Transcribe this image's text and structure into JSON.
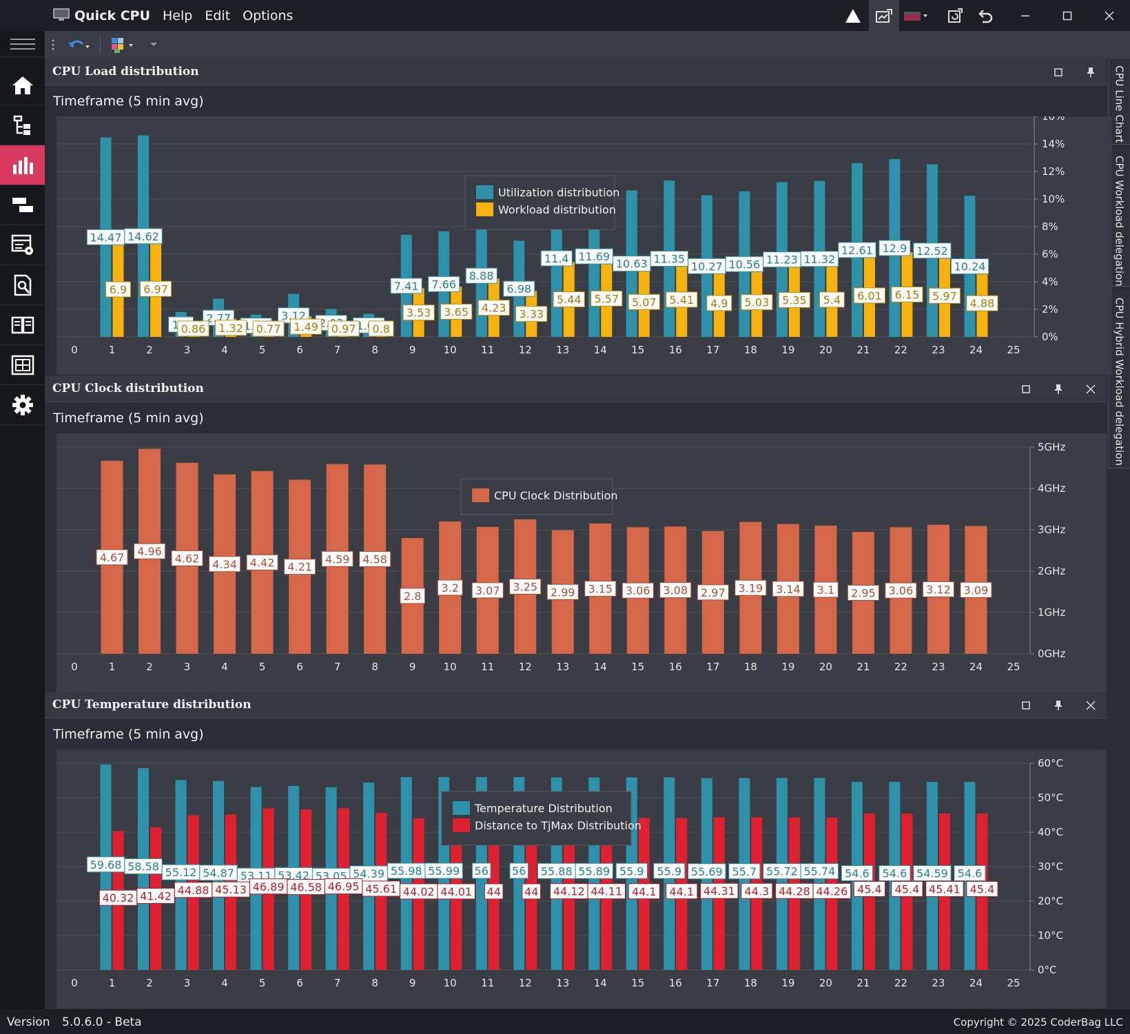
{
  "app": {
    "title": "Quick CPU",
    "menu": [
      "Help",
      "Edit",
      "Options"
    ]
  },
  "sidebar": {
    "items": [
      {
        "icon": "home-icon"
      },
      {
        "icon": "tree-icon"
      },
      {
        "icon": "bar-chart-icon",
        "active": true
      },
      {
        "icon": "gantt-icon"
      },
      {
        "icon": "table-settings-icon"
      },
      {
        "icon": "document-search-icon"
      },
      {
        "icon": "book-icon"
      },
      {
        "icon": "grid-frame-icon"
      },
      {
        "icon": "gear-icon"
      }
    ]
  },
  "dock_tabs": [
    "CPU Line Chart",
    "CPU Workload delegation",
    "CPU Hybrid Workload delegation"
  ],
  "status": {
    "version_label": "Version",
    "version_value": "5.0.6.0 - Beta",
    "copyright": "Copyright © 2025 CoderBag LLC"
  },
  "panels": [
    {
      "title": "CPU Load distribution",
      "timeframe": "Timeframe (5 min avg)"
    },
    {
      "title": "CPU Clock distribution",
      "timeframe": "Timeframe (5 min avg)"
    },
    {
      "title": "CPU Temperature distribution",
      "timeframe": "Timeframe (5 min avg)"
    }
  ],
  "colors": {
    "blue": "#2f91a9",
    "yellow": "#f6b20e",
    "orange": "#d4664a",
    "red": "#dd2130",
    "accent": "#d93a62"
  },
  "chart_data": [
    {
      "type": "bar",
      "categories": [
        1,
        2,
        3,
        4,
        5,
        6,
        7,
        8,
        9,
        10,
        11,
        12,
        13,
        14,
        15,
        16,
        17,
        18,
        19,
        20,
        21,
        22,
        23,
        24
      ],
      "x_ticks": [
        0,
        1,
        2,
        3,
        4,
        5,
        6,
        7,
        8,
        9,
        10,
        11,
        12,
        13,
        14,
        15,
        16,
        17,
        18,
        19,
        20,
        21,
        22,
        23,
        24,
        25
      ],
      "y_ticks": [
        "0%",
        "2%",
        "4%",
        "6%",
        "8%",
        "10%",
        "12%",
        "14%",
        "16%"
      ],
      "ylim": [
        0,
        16
      ],
      "legend": "top-center",
      "series": [
        {
          "name": "Utilization distribution",
          "color": "#2f91a9",
          "values": [
            14.47,
            14.62,
            1.8,
            2.77,
            1.62,
            3.12,
            2.03,
            1.67,
            7.41,
            7.66,
            8.88,
            6.98,
            11.4,
            11.69,
            10.63,
            11.35,
            10.27,
            10.56,
            11.23,
            11.32,
            12.61,
            12.9,
            12.52,
            10.24
          ]
        },
        {
          "name": "Workload distribution",
          "color": "#f6b20e",
          "values": [
            6.9,
            6.97,
            0.86,
            1.32,
            0.77,
            1.49,
            0.97,
            0.8,
            3.53,
            3.65,
            4.23,
            3.33,
            5.44,
            5.57,
            5.07,
            5.41,
            4.9,
            5.03,
            5.35,
            5.4,
            6.01,
            6.15,
            5.97,
            4.88
          ]
        }
      ]
    },
    {
      "type": "bar",
      "categories": [
        1,
        2,
        3,
        4,
        5,
        6,
        7,
        8,
        9,
        10,
        11,
        12,
        13,
        14,
        15,
        16,
        17,
        18,
        19,
        20,
        21,
        22,
        23,
        24
      ],
      "x_ticks": [
        0,
        1,
        2,
        3,
        4,
        5,
        6,
        7,
        8,
        9,
        10,
        11,
        12,
        13,
        14,
        15,
        16,
        17,
        18,
        19,
        20,
        21,
        22,
        23,
        24,
        25
      ],
      "y_ticks": [
        "0GHz",
        "1GHz",
        "2GHz",
        "3GHz",
        "4GHz",
        "5GHz"
      ],
      "ylim": [
        0,
        5
      ],
      "legend": "top-center",
      "series": [
        {
          "name": "CPU Clock Distribution",
          "color": "#d4664a",
          "values": [
            4.67,
            4.96,
            4.62,
            4.34,
            4.42,
            4.21,
            4.59,
            4.58,
            2.8,
            3.2,
            3.07,
            3.25,
            2.99,
            3.15,
            3.06,
            3.08,
            2.97,
            3.19,
            3.14,
            3.1,
            2.95,
            3.06,
            3.12,
            3.09
          ]
        }
      ]
    },
    {
      "type": "bar",
      "categories": [
        1,
        2,
        3,
        4,
        5,
        6,
        7,
        8,
        9,
        10,
        11,
        12,
        13,
        14,
        15,
        16,
        17,
        18,
        19,
        20,
        21,
        22,
        23,
        24
      ],
      "x_ticks": [
        0,
        1,
        2,
        3,
        4,
        5,
        6,
        7,
        8,
        9,
        10,
        11,
        12,
        13,
        14,
        15,
        16,
        17,
        18,
        19,
        20,
        21,
        22,
        23,
        24,
        25
      ],
      "y_ticks": [
        "0°C",
        "10°C",
        "20°C",
        "30°C",
        "40°C",
        "50°C",
        "60°C"
      ],
      "ylim": [
        0,
        60
      ],
      "legend": "top-center",
      "series": [
        {
          "name": "Temperature Distribution",
          "color": "#2f91a9",
          "values": [
            59.68,
            58.58,
            55.12,
            54.87,
            53.11,
            53.42,
            53.05,
            54.39,
            55.98,
            55.99,
            56,
            56,
            55.88,
            55.89,
            55.9,
            55.9,
            55.69,
            55.7,
            55.72,
            55.74,
            54.6,
            54.6,
            54.59,
            54.6
          ]
        },
        {
          "name": "Distance to TjMax Distribution",
          "color": "#dd2130",
          "values": [
            40.32,
            41.42,
            44.88,
            45.13,
            46.89,
            46.58,
            46.95,
            45.61,
            44.02,
            44.01,
            44,
            44,
            44.12,
            44.11,
            44.1,
            44.1,
            44.31,
            44.3,
            44.28,
            44.26,
            45.4,
            45.4,
            45.41,
            45.4
          ]
        }
      ]
    }
  ]
}
